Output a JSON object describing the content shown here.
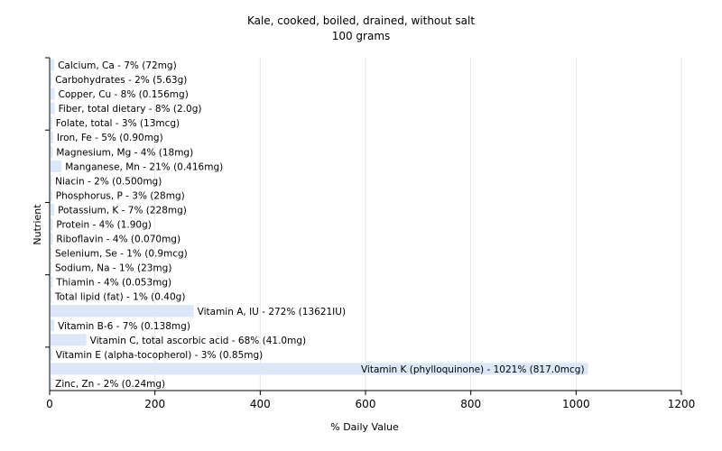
{
  "chart_data": {
    "type": "bar",
    "orientation": "horizontal",
    "title": "Kale, cooked, boiled, drained, without salt",
    "subtitle": "100 grams",
    "xlabel": "% Daily Value",
    "ylabel": "Nutrient",
    "xlim": [
      0,
      1200
    ],
    "xticks": [
      0,
      200,
      400,
      600,
      800,
      1000,
      1200
    ],
    "grid": true,
    "bar_color": "#dce8f8",
    "categories": [
      "Calcium, Ca",
      "Carbohydrates",
      "Copper, Cu",
      "Fiber, total dietary",
      "Folate, total",
      "Iron, Fe",
      "Magnesium, Mg",
      "Manganese, Mn",
      "Niacin",
      "Phosphorus, P",
      "Potassium, K",
      "Protein",
      "Riboflavin",
      "Selenium, Se",
      "Sodium, Na",
      "Thiamin",
      "Total lipid (fat)",
      "Vitamin A, IU",
      "Vitamin B-6",
      "Vitamin C, total ascorbic acid",
      "Vitamin E (alpha-tocopherol)",
      "Vitamin K (phylloquinone)",
      "Zinc, Zn"
    ],
    "values": [
      7,
      2,
      8,
      8,
      3,
      5,
      4,
      21,
      2,
      3,
      7,
      4,
      4,
      1,
      1,
      4,
      1,
      272,
      7,
      68,
      3,
      1021,
      2
    ],
    "labels": [
      "Calcium, Ca - 7% (72mg)",
      "Carbohydrates - 2% (5.63g)",
      "Copper, Cu - 8% (0.156mg)",
      "Fiber, total dietary - 8% (2.0g)",
      "Folate, total - 3% (13mcg)",
      "Iron, Fe - 5% (0.90mg)",
      "Magnesium, Mg - 4% (18mg)",
      "Manganese, Mn - 21% (0.416mg)",
      "Niacin - 2% (0.500mg)",
      "Phosphorus, P - 3% (28mg)",
      "Potassium, K - 7% (228mg)",
      "Protein - 4% (1.90g)",
      "Riboflavin - 4% (0.070mg)",
      "Selenium, Se - 1% (0.9mcg)",
      "Sodium, Na - 1% (23mg)",
      "Thiamin - 4% (0.053mg)",
      "Total lipid (fat) - 1% (0.40g)",
      "Vitamin A, IU - 272% (13621IU)",
      "Vitamin B-6 - 7% (0.138mg)",
      "Vitamin C, total ascorbic acid - 68% (41.0mg)",
      "Vitamin E (alpha-tocopherol) - 3% (0.85mg)",
      "Vitamin K (phylloquinone) - 1021% (817.0mcg)",
      "Zinc, Zn - 2% (0.24mg)"
    ]
  }
}
